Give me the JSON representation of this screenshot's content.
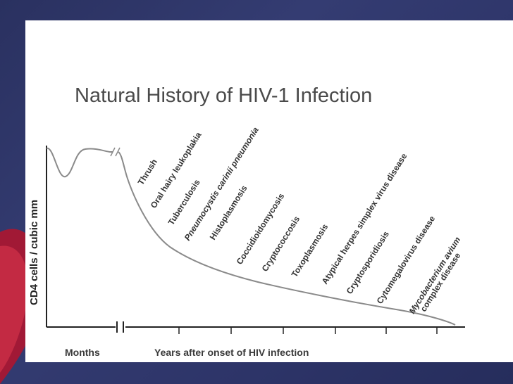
{
  "colors": {
    "background": "#2f3668",
    "accent_ribbon": "#c4162e",
    "slide": "#ffffff",
    "curve": "#8a8a8a",
    "axis": "#222222"
  },
  "chart_data": {
    "type": "line",
    "title": "Natural History of HIV-1 Infection",
    "ylabel": "CD4 cells / cubic mm",
    "xlabel_left": "Months",
    "xlabel_right": "Years after onset of HIV infection",
    "axis_break": true,
    "grid": false,
    "series": [
      {
        "values_relative": [
          0.88,
          0.55,
          0.83,
          0.87,
          0.86,
          0.62,
          0.48,
          0.38,
          0.32,
          0.27,
          0.22,
          0.16,
          0.1,
          0.02
        ]
      }
    ],
    "annotations": [
      {
        "text": "Thrush",
        "italic": false
      },
      {
        "text": "Oral hairy leukoplakia",
        "italic": false
      },
      {
        "text": "Tuberculosis",
        "italic": false
      },
      {
        "text": "Pneumocystis carinii pneumonia",
        "italic": true
      },
      {
        "text": "Histoplasmosis",
        "italic": false
      },
      {
        "text": "Coccidioidomycosis",
        "italic": false
      },
      {
        "text": "Cryptococcosis",
        "italic": false
      },
      {
        "text": "Toxoplasmosis",
        "italic": false
      },
      {
        "text": "Atypical herpes simplex virus disease",
        "italic": false
      },
      {
        "text": "Cryptosporidiosis",
        "italic": false
      },
      {
        "text": "Cytomegalovirus disease",
        "italic": false
      },
      {
        "text": "Mycobacterium avium",
        "italic": true
      },
      {
        "text": "complex disease",
        "italic": false
      }
    ]
  }
}
